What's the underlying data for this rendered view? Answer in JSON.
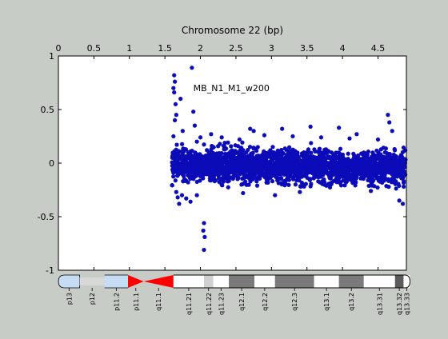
{
  "chart_data": {
    "type": "scatter",
    "title": "Chromosome 22 (bp)",
    "annotation": "MB_N1_M1_w200",
    "xlabel": "Chromosome 22 (bp)",
    "ylabel": "",
    "xlim": [
      0,
      4.9
    ],
    "ylim": [
      -1,
      1
    ],
    "x_ticks": [
      "0",
      "0.5",
      "1",
      "1.5",
      "2",
      "2.5",
      "3",
      "3.5",
      "4",
      "4.5"
    ],
    "y_ticks": [
      "1",
      "0.5",
      "0",
      "-0.5",
      "-1"
    ],
    "x_axis_position": "top",
    "grid": false,
    "marker": "asterisk",
    "series_color": "#0b0bb8",
    "baseline": {
      "y": 0,
      "color": "#8a8a8a"
    },
    "data_range_x": [
      1.6,
      4.9
    ],
    "points": [
      [
        1.63,
        0.82
      ],
      [
        1.64,
        0.76
      ],
      [
        1.62,
        0.7
      ],
      [
        1.63,
        0.66
      ],
      [
        1.65,
        0.55
      ],
      [
        1.66,
        0.45
      ],
      [
        1.64,
        0.4
      ],
      [
        1.88,
        0.89
      ],
      [
        1.72,
        0.6
      ],
      [
        1.9,
        0.48
      ],
      [
        1.92,
        0.35
      ],
      [
        1.75,
        0.3
      ],
      [
        1.62,
        0.25
      ],
      [
        1.68,
        -0.32
      ],
      [
        1.7,
        -0.38
      ],
      [
        1.74,
        -0.3
      ],
      [
        1.66,
        -0.27
      ],
      [
        1.8,
        -0.33
      ],
      [
        1.86,
        -0.36
      ],
      [
        1.95,
        -0.3
      ],
      [
        2.05,
        -0.56
      ],
      [
        2.04,
        -0.63
      ],
      [
        2.06,
        -0.69
      ],
      [
        2.05,
        -0.81
      ],
      [
        4.64,
        0.45
      ],
      [
        4.66,
        0.38
      ],
      [
        4.7,
        0.3
      ],
      [
        3.15,
        0.32
      ],
      [
        3.55,
        0.34
      ],
      [
        3.95,
        0.33
      ],
      [
        2.7,
        0.32
      ],
      [
        2.75,
        0.3
      ],
      [
        4.2,
        0.27
      ],
      [
        4.8,
        -0.35
      ],
      [
        4.85,
        -0.38
      ],
      [
        4.92,
        -0.3
      ],
      [
        2.6,
        -0.28
      ],
      [
        3.05,
        -0.3
      ],
      [
        3.4,
        -0.27
      ],
      [
        4.4,
        -0.26
      ],
      [
        1.95,
        0.2
      ],
      [
        2.3,
        0.24
      ],
      [
        2.55,
        0.22
      ],
      [
        2.9,
        0.26
      ],
      [
        3.3,
        0.25
      ],
      [
        3.7,
        0.24
      ],
      [
        4.1,
        0.23
      ],
      [
        4.5,
        0.22
      ],
      [
        2.15,
        0.27
      ],
      [
        2.0,
        0.24
      ]
    ],
    "band": [
      {
        "x0": 1.6,
        "x1": 1.8,
        "lo": -0.22,
        "hi": 0.24,
        "n": 140
      },
      {
        "x0": 1.8,
        "x1": 2.1,
        "lo": -0.2,
        "hi": 0.2,
        "n": 200
      },
      {
        "x0": 2.1,
        "x1": 2.6,
        "lo": -0.22,
        "hi": 0.24,
        "n": 360
      },
      {
        "x0": 2.6,
        "x1": 3.2,
        "lo": -0.23,
        "hi": 0.22,
        "n": 420
      },
      {
        "x0": 3.2,
        "x1": 3.8,
        "lo": -0.24,
        "hi": 0.22,
        "n": 420
      },
      {
        "x0": 3.8,
        "x1": 4.4,
        "lo": -0.24,
        "hi": 0.2,
        "n": 420
      },
      {
        "x0": 4.4,
        "x1": 4.95,
        "lo": -0.27,
        "hi": 0.2,
        "n": 380
      }
    ]
  },
  "ideogram": {
    "bands": [
      {
        "label": "p13",
        "start": 0.0,
        "end": 0.3,
        "stain": "acen_stalk",
        "color": "#c6dcf5"
      },
      {
        "label": "p12",
        "start": 0.3,
        "end": 0.65,
        "stain": "stalk",
        "color": "#d8d8d8"
      },
      {
        "label": "p11.2",
        "start": 0.65,
        "end": 0.98,
        "stain": "gvar",
        "color": "#c6dcf5"
      },
      {
        "label": "p11.1",
        "start": 0.98,
        "end": 1.2,
        "stain": "acen",
        "color": "#ff0000"
      },
      {
        "label": "q11.1",
        "start": 1.2,
        "end": 1.62,
        "stain": "acen",
        "color": "#ff0000"
      },
      {
        "label": "q11.21",
        "start": 1.62,
        "end": 2.05,
        "stain": "gneg",
        "color": "#ffffff"
      },
      {
        "label": "q11.22",
        "start": 2.05,
        "end": 2.18,
        "stain": "gpos25",
        "color": "#d0d0d0"
      },
      {
        "label": "q11.23",
        "start": 2.18,
        "end": 2.4,
        "stain": "gneg",
        "color": "#ffffff"
      },
      {
        "label": "q12.1",
        "start": 2.4,
        "end": 2.76,
        "stain": "gpos50",
        "color": "#7a7a7a"
      },
      {
        "label": "q12.2",
        "start": 2.76,
        "end": 3.05,
        "stain": "gneg",
        "color": "#ffffff"
      },
      {
        "label": "q12.3",
        "start": 3.05,
        "end": 3.6,
        "stain": "gpos50",
        "color": "#7a7a7a"
      },
      {
        "label": "q13.1",
        "start": 3.6,
        "end": 3.95,
        "stain": "gneg",
        "color": "#ffffff"
      },
      {
        "label": "q13.2",
        "start": 3.95,
        "end": 4.3,
        "stain": "gpos50",
        "color": "#7a7a7a"
      },
      {
        "label": "q13.31",
        "start": 4.3,
        "end": 4.74,
        "stain": "gneg",
        "color": "#ffffff"
      },
      {
        "label": "q13.32",
        "start": 4.74,
        "end": 4.86,
        "stain": "gpos50",
        "color": "#5a5a5a"
      },
      {
        "label": "q13.33",
        "start": 4.86,
        "end": 4.95,
        "stain": "gneg",
        "color": "#ffffff"
      }
    ]
  }
}
